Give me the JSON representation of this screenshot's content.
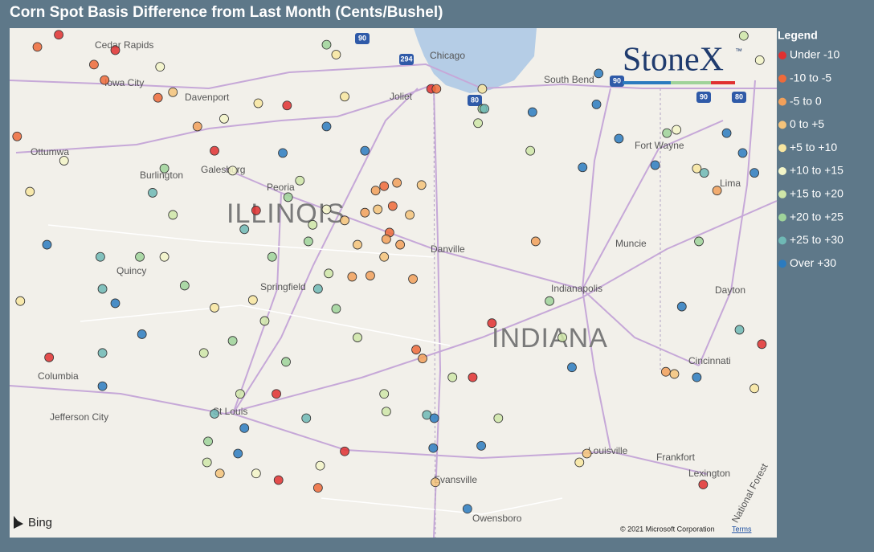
{
  "header": {
    "title": "Corn Spot Basis Difference from Last Month (Cents/Bushel)"
  },
  "map": {
    "bounds": {
      "west": -91.53,
      "east": -84.34,
      "north": 42.13,
      "south": 37.52
    },
    "places": [
      "Cedar Rapids",
      "Iowa City",
      "Davenport",
      "Chicago",
      "Joliet",
      "South Bend",
      "Ottumwa",
      "Burlington",
      "Galesburg",
      "Peoria",
      "ILLINOIS",
      "Quincy",
      "Danville",
      "Springfield",
      "Indianapolis",
      "Muncie",
      "Fort Wayne",
      "Lima",
      "Dayton",
      "INDIANA",
      "Cincinnati",
      "Columbia",
      "St Louis",
      "Jefferson City",
      "Louisville",
      "Frankfort",
      "Evansville",
      "Lexington",
      "Owensboro",
      "National Forest"
    ],
    "shields": [
      "90",
      "294",
      "90",
      "80",
      "90",
      "80"
    ],
    "brand": "StoneX",
    "trademark": "™",
    "provider": "Bing",
    "copyright": "© 2021 Microsoft Corporation",
    "terms": "Terms"
  },
  "legend": {
    "title": "Legend",
    "items": [
      {
        "label": "Under -10",
        "color": "#e03030",
        "points": [
          [
            -91.07,
            42.07
          ],
          [
            -90.54,
            41.93
          ],
          [
            -89.22,
            40.48
          ],
          [
            -88.93,
            41.43
          ],
          [
            -89.61,
            41.02
          ],
          [
            -91.16,
            39.15
          ],
          [
            -87.19,
            38.97
          ],
          [
            -87.01,
            39.46
          ],
          [
            -89.03,
            38.82
          ],
          [
            -88.39,
            38.3
          ],
          [
            -89.01,
            38.04
          ],
          [
            -85.03,
            38.0
          ],
          [
            -84.48,
            39.27
          ],
          [
            -87.58,
            41.58
          ]
        ]
      },
      {
        "label": "-10 to -5",
        "color": "#ee6a3a",
        "points": [
          [
            -91.27,
            41.96
          ],
          [
            -90.74,
            41.8
          ],
          [
            -90.64,
            41.66
          ],
          [
            -90.14,
            41.5
          ],
          [
            -88.02,
            40.7
          ],
          [
            -87.94,
            40.52
          ],
          [
            -87.97,
            40.28
          ],
          [
            -87.72,
            39.22
          ],
          [
            -87.53,
            41.58
          ],
          [
            -91.46,
            41.15
          ],
          [
            -88.64,
            37.97
          ]
        ]
      },
      {
        "label": "-5 to 0",
        "color": "#f2a05a",
        "points": [
          [
            -87.9,
            40.73
          ],
          [
            -88.1,
            40.66
          ],
          [
            -88.2,
            40.46
          ],
          [
            -88.0,
            40.22
          ],
          [
            -87.87,
            40.17
          ],
          [
            -88.15,
            39.89
          ],
          [
            -88.32,
            39.88
          ],
          [
            -87.75,
            39.86
          ],
          [
            -87.66,
            39.14
          ],
          [
            -86.6,
            40.2
          ],
          [
            -89.77,
            41.24
          ],
          [
            -84.9,
            40.66
          ],
          [
            -85.38,
            39.02
          ]
        ]
      },
      {
        "label": "0 to +5",
        "color": "#f5c37a",
        "points": [
          [
            -88.08,
            40.49
          ],
          [
            -87.78,
            40.44
          ],
          [
            -88.39,
            40.39
          ],
          [
            -87.67,
            40.71
          ],
          [
            -88.27,
            40.17
          ],
          [
            -88.02,
            40.06
          ],
          [
            -87.54,
            38.02
          ],
          [
            -86.12,
            38.28
          ],
          [
            -85.3,
            39.0
          ],
          [
            -90.0,
            41.55
          ],
          [
            -89.56,
            38.1
          ]
        ]
      },
      {
        "label": "+5 to +10",
        "color": "#f8e6a0",
        "points": [
          [
            -88.47,
            41.89
          ],
          [
            -89.2,
            41.45
          ],
          [
            -88.39,
            41.51
          ],
          [
            -89.61,
            39.6
          ],
          [
            -89.25,
            39.67
          ],
          [
            -84.55,
            38.87
          ],
          [
            -85.09,
            40.86
          ],
          [
            -91.34,
            40.65
          ],
          [
            -87.1,
            41.58
          ],
          [
            -86.19,
            38.2
          ],
          [
            -91.43,
            39.66
          ]
        ]
      },
      {
        "label": "+10 to +15",
        "color": "#f3f5c8",
        "points": [
          [
            -90.12,
            41.78
          ],
          [
            -89.44,
            40.84
          ],
          [
            -91.02,
            40.93
          ],
          [
            -84.5,
            41.84
          ],
          [
            -90.08,
            40.06
          ],
          [
            -89.22,
            38.1
          ],
          [
            -89.52,
            41.31
          ],
          [
            -88.56,
            40.49
          ],
          [
            -88.62,
            38.17
          ],
          [
            -85.28,
            41.21
          ]
        ]
      },
      {
        "label": "+15 to +20",
        "color": "#cfe6a8",
        "points": [
          [
            -88.81,
            40.75
          ],
          [
            -88.69,
            40.35
          ],
          [
            -88.54,
            39.91
          ],
          [
            -89.14,
            39.48
          ],
          [
            -88.27,
            39.33
          ],
          [
            -89.71,
            39.19
          ],
          [
            -89.37,
            38.82
          ],
          [
            -88.02,
            38.82
          ],
          [
            -87.38,
            38.97
          ],
          [
            -87.14,
            41.27
          ],
          [
            -86.65,
            41.02
          ],
          [
            -86.35,
            39.33
          ],
          [
            -86.95,
            38.6
          ],
          [
            -84.65,
            42.06
          ],
          [
            -90.0,
            40.44
          ],
          [
            -89.68,
            38.2
          ],
          [
            -88.0,
            38.66
          ]
        ]
      },
      {
        "label": "+20 to +25",
        "color": "#9fd39a",
        "points": [
          [
            -88.92,
            40.6
          ],
          [
            -88.73,
            40.2
          ],
          [
            -89.07,
            40.06
          ],
          [
            -88.47,
            39.59
          ],
          [
            -89.44,
            39.3
          ],
          [
            -88.94,
            39.11
          ],
          [
            -90.31,
            40.06
          ],
          [
            -90.08,
            40.86
          ],
          [
            -89.67,
            38.39
          ],
          [
            -86.47,
            39.66
          ],
          [
            -85.07,
            40.2
          ],
          [
            -85.37,
            41.18
          ],
          [
            -87.1,
            41.4
          ],
          [
            -88.56,
            41.98
          ],
          [
            -89.89,
            39.8
          ]
        ]
      },
      {
        "label": "+25 to +30",
        "color": "#6fb9b5",
        "points": [
          [
            -90.66,
            39.77
          ],
          [
            -90.66,
            39.19
          ],
          [
            -90.68,
            40.06
          ],
          [
            -89.33,
            40.31
          ],
          [
            -88.64,
            39.77
          ],
          [
            -87.62,
            38.63
          ],
          [
            -90.19,
            40.64
          ],
          [
            -87.08,
            41.4
          ],
          [
            -84.69,
            39.4
          ],
          [
            -85.02,
            40.82
          ],
          [
            -89.61,
            38.64
          ],
          [
            -88.75,
            38.6
          ]
        ]
      },
      {
        "label": "Over +30",
        "color": "#2b7bbf",
        "points": [
          [
            -91.18,
            40.17
          ],
          [
            -90.54,
            39.64
          ],
          [
            -90.29,
            39.36
          ],
          [
            -90.66,
            38.89
          ],
          [
            -89.33,
            38.51
          ],
          [
            -89.39,
            38.28
          ],
          [
            -88.56,
            41.24
          ],
          [
            -88.97,
            41.0
          ],
          [
            -88.2,
            41.02
          ],
          [
            -87.55,
            38.6
          ],
          [
            -87.56,
            38.33
          ],
          [
            -87.11,
            38.35
          ],
          [
            -87.24,
            37.78
          ],
          [
            -86.16,
            40.87
          ],
          [
            -85.82,
            41.13
          ],
          [
            -85.48,
            40.89
          ],
          [
            -84.81,
            41.18
          ],
          [
            -84.66,
            41.0
          ],
          [
            -84.55,
            40.82
          ],
          [
            -85.23,
            39.61
          ],
          [
            -85.09,
            38.97
          ],
          [
            -86.63,
            41.37
          ],
          [
            -86.26,
            39.06
          ],
          [
            -86.01,
            41.72
          ],
          [
            -86.03,
            41.44
          ]
        ]
      }
    ]
  }
}
